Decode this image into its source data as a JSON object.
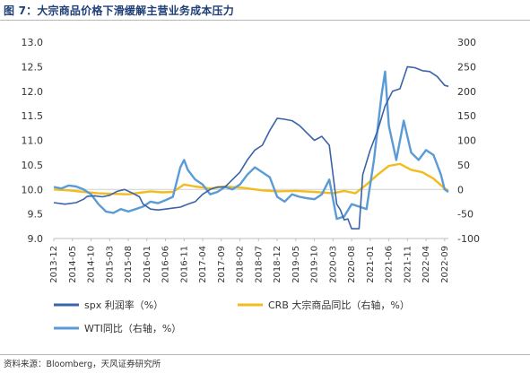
{
  "figure": {
    "title": "图 7：大宗商品价格下滑缓解主营业务成本压力",
    "source": "资料来源：Bloomberg，天风证券研究所"
  },
  "chart_data": {
    "type": "line",
    "left_axis": {
      "ticks": [
        "13.0",
        "12.5",
        "12.0",
        "11.5",
        "11.0",
        "10.5",
        "10.0",
        "9.5",
        "9.0"
      ],
      "min": 9.0,
      "max": 13.0
    },
    "right_axis": {
      "ticks": [
        "300",
        "250",
        "200",
        "150",
        "100",
        "50",
        "0",
        "-50",
        "-100"
      ],
      "min": -100,
      "max": 300
    },
    "x_labels": [
      "2013-12",
      "2014-05",
      "2014-10",
      "2015-03",
      "2015-08",
      "2016-01",
      "2016-06",
      "2016-11",
      "2017-04",
      "2017-09",
      "2018-02",
      "2018-07",
      "2018-12",
      "2019-05",
      "2019-10",
      "2020-03",
      "2020-08",
      "2021-01",
      "2021-06",
      "2021-11",
      "2022-04",
      "2022-09"
    ],
    "x_start": "2013-12",
    "x_end": "2022-10",
    "legend_position": "bottom",
    "colors": {
      "spx": "#3a63a8",
      "crb": "#f2bd1c",
      "wti": "#5b9bd5"
    },
    "series": [
      {
        "key": "spx",
        "name": "spx 利润率（%）",
        "axis": "left",
        "values": [
          [
            "2013-12",
            9.73
          ],
          [
            "2014-03",
            9.7
          ],
          [
            "2014-06",
            9.73
          ],
          [
            "2014-08",
            9.8
          ],
          [
            "2014-09",
            9.86
          ],
          [
            "2014-11",
            9.87
          ],
          [
            "2015-01",
            9.85
          ],
          [
            "2015-03",
            9.88
          ],
          [
            "2015-05",
            9.96
          ],
          [
            "2015-07",
            10.0
          ],
          [
            "2015-09",
            9.93
          ],
          [
            "2015-11",
            9.85
          ],
          [
            "2015-12",
            9.7
          ],
          [
            "2016-02",
            9.6
          ],
          [
            "2016-04",
            9.58
          ],
          [
            "2016-06",
            9.6
          ],
          [
            "2016-08",
            9.62
          ],
          [
            "2016-10",
            9.64
          ],
          [
            "2016-12",
            9.7
          ],
          [
            "2017-02",
            9.75
          ],
          [
            "2017-04",
            9.9
          ],
          [
            "2017-06",
            10.0
          ],
          [
            "2017-08",
            10.05
          ],
          [
            "2017-10",
            10.05
          ],
          [
            "2017-12",
            10.2
          ],
          [
            "2018-02",
            10.35
          ],
          [
            "2018-04",
            10.6
          ],
          [
            "2018-06",
            10.8
          ],
          [
            "2018-08",
            10.9
          ],
          [
            "2018-10",
            11.2
          ],
          [
            "2018-12",
            11.45
          ],
          [
            "2019-02",
            11.43
          ],
          [
            "2019-04",
            11.4
          ],
          [
            "2019-06",
            11.3
          ],
          [
            "2019-08",
            11.15
          ],
          [
            "2019-10",
            11.0
          ],
          [
            "2019-12",
            11.08
          ],
          [
            "2020-02",
            10.9
          ],
          [
            "2020-04",
            9.7
          ],
          [
            "2020-05",
            9.58
          ],
          [
            "2020-06",
            9.38
          ],
          [
            "2020-07",
            9.4
          ],
          [
            "2020-08",
            9.2
          ],
          [
            "2020-10",
            9.2
          ],
          [
            "2020-11",
            10.3
          ],
          [
            "2021-01",
            10.8
          ],
          [
            "2021-03",
            11.2
          ],
          [
            "2021-05",
            11.7
          ],
          [
            "2021-07",
            12.0
          ],
          [
            "2021-09",
            12.05
          ],
          [
            "2021-11",
            12.5
          ],
          [
            "2022-01",
            12.48
          ],
          [
            "2022-03",
            12.42
          ],
          [
            "2022-05",
            12.4
          ],
          [
            "2022-07",
            12.3
          ],
          [
            "2022-09",
            12.12
          ],
          [
            "2022-10",
            12.1
          ]
        ]
      },
      {
        "key": "crb",
        "name": "CRB 大宗商品同比（右轴，%）",
        "axis": "right",
        "values": [
          [
            "2013-12",
            0
          ],
          [
            "2014-04",
            -2
          ],
          [
            "2014-08",
            -5
          ],
          [
            "2014-12",
            -8
          ],
          [
            "2015-04",
            -9
          ],
          [
            "2015-08",
            -10
          ],
          [
            "2015-12",
            -6
          ],
          [
            "2016-02",
            -4
          ],
          [
            "2016-05",
            -6
          ],
          [
            "2016-08",
            -5
          ],
          [
            "2016-11",
            10
          ],
          [
            "2017-02",
            6
          ],
          [
            "2017-06",
            2
          ],
          [
            "2017-10",
            6
          ],
          [
            "2018-03",
            3
          ],
          [
            "2018-08",
            -2
          ],
          [
            "2018-12",
            -4
          ],
          [
            "2019-05",
            -3
          ],
          [
            "2019-10",
            -5
          ],
          [
            "2020-03",
            -8
          ],
          [
            "2020-06",
            -3
          ],
          [
            "2020-09",
            -8
          ],
          [
            "2020-12",
            10
          ],
          [
            "2021-03",
            30
          ],
          [
            "2021-06",
            48
          ],
          [
            "2021-09",
            52
          ],
          [
            "2021-12",
            40
          ],
          [
            "2022-03",
            35
          ],
          [
            "2022-06",
            22
          ],
          [
            "2022-09",
            2
          ],
          [
            "2022-10",
            -2
          ]
        ]
      },
      {
        "key": "wti",
        "name": "WTI同比（右轴，%）",
        "axis": "right",
        "values": [
          [
            "2013-12",
            5
          ],
          [
            "2014-02",
            2
          ],
          [
            "2014-04",
            8
          ],
          [
            "2014-06",
            6
          ],
          [
            "2014-08",
            0
          ],
          [
            "2014-10",
            -10
          ],
          [
            "2014-12",
            -30
          ],
          [
            "2015-02",
            -45
          ],
          [
            "2015-04",
            -48
          ],
          [
            "2015-06",
            -40
          ],
          [
            "2015-08",
            -45
          ],
          [
            "2015-10",
            -40
          ],
          [
            "2015-12",
            -35
          ],
          [
            "2016-02",
            -25
          ],
          [
            "2016-04",
            -28
          ],
          [
            "2016-06",
            -22
          ],
          [
            "2016-08",
            -15
          ],
          [
            "2016-10",
            45
          ],
          [
            "2016-11",
            60
          ],
          [
            "2016-12",
            40
          ],
          [
            "2017-02",
            20
          ],
          [
            "2017-04",
            10
          ],
          [
            "2017-06",
            -10
          ],
          [
            "2017-08",
            -5
          ],
          [
            "2017-10",
            5
          ],
          [
            "2017-12",
            0
          ],
          [
            "2018-02",
            10
          ],
          [
            "2018-04",
            30
          ],
          [
            "2018-06",
            45
          ],
          [
            "2018-08",
            35
          ],
          [
            "2018-10",
            25
          ],
          [
            "2018-12",
            -15
          ],
          [
            "2019-02",
            -25
          ],
          [
            "2019-04",
            -10
          ],
          [
            "2019-06",
            -15
          ],
          [
            "2019-08",
            -18
          ],
          [
            "2019-10",
            -20
          ],
          [
            "2019-12",
            -10
          ],
          [
            "2020-02",
            20
          ],
          [
            "2020-04",
            -60
          ],
          [
            "2020-06",
            -55
          ],
          [
            "2020-08",
            -30
          ],
          [
            "2020-10",
            -35
          ],
          [
            "2020-12",
            -40
          ],
          [
            "2021-02",
            60
          ],
          [
            "2021-04",
            190
          ],
          [
            "2021-05",
            240
          ],
          [
            "2021-06",
            130
          ],
          [
            "2021-08",
            60
          ],
          [
            "2021-10",
            140
          ],
          [
            "2021-12",
            75
          ],
          [
            "2022-02",
            60
          ],
          [
            "2022-04",
            80
          ],
          [
            "2022-06",
            70
          ],
          [
            "2022-08",
            30
          ],
          [
            "2022-09",
            0
          ],
          [
            "2022-10",
            -5
          ]
        ]
      }
    ]
  }
}
